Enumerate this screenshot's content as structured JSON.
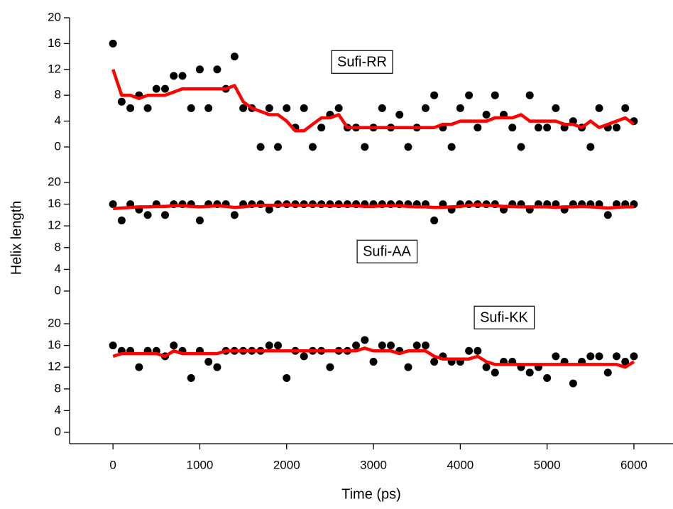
{
  "chart_data": [
    {
      "type": "scatter",
      "annotation": "Sufi-RR",
      "color": "#000000",
      "line_color": "#ff0000",
      "xlim": [
        -500,
        6450
      ],
      "ylim": [
        -2,
        20
      ],
      "yticks": [
        0,
        4,
        8,
        12,
        16,
        20
      ],
      "x": [
        0,
        100,
        200,
        300,
        400,
        500,
        600,
        700,
        800,
        900,
        1000,
        1100,
        1200,
        1300,
        1400,
        1500,
        1600,
        1700,
        1800,
        1900,
        2000,
        2100,
        2200,
        2300,
        2400,
        2500,
        2600,
        2700,
        2800,
        2900,
        3000,
        3100,
        3200,
        3300,
        3400,
        3500,
        3600,
        3700,
        3800,
        3900,
        4000,
        4100,
        4200,
        4300,
        4400,
        4500,
        4600,
        4700,
        4800,
        4900,
        5000,
        5100,
        5200,
        5300,
        5400,
        5500,
        5600,
        5700,
        5800,
        5900,
        6000
      ],
      "values": [
        16,
        7,
        6,
        8,
        6,
        9,
        9,
        11,
        11,
        6,
        12,
        6,
        12,
        9,
        14,
        6,
        6,
        0,
        6,
        0,
        6,
        3,
        6,
        0,
        3,
        5,
        6,
        3,
        3,
        0,
        3,
        6,
        3,
        5,
        0,
        3,
        6,
        8,
        3,
        0,
        6,
        8,
        3,
        5,
        8,
        5,
        3,
        0,
        8,
        3,
        3,
        6,
        3,
        4,
        3,
        0,
        6,
        3,
        3,
        6,
        4
      ],
      "line_values": [
        12,
        8,
        8,
        7.5,
        8,
        8,
        8,
        8.5,
        9,
        9,
        9,
        9,
        9,
        9,
        9.5,
        7,
        6,
        5.5,
        5,
        5,
        4,
        2.5,
        2.5,
        3.5,
        4.5,
        4.5,
        5,
        3,
        3,
        3,
        3,
        3,
        3,
        3,
        3,
        3,
        3,
        3,
        3.5,
        3.5,
        4,
        4,
        4,
        4,
        4.5,
        4.5,
        4.5,
        5,
        4,
        4,
        4,
        4,
        3.5,
        3.5,
        3,
        4,
        3,
        3.5,
        4,
        4.5,
        3.5
      ]
    },
    {
      "type": "scatter",
      "annotation": "Sufi-AA",
      "ylabel": "Helix length",
      "color": "#000000",
      "line_color": "#ff0000",
      "xlim": [
        -500,
        6450
      ],
      "ylim": [
        -2,
        22
      ],
      "yticks": [
        0,
        4,
        8,
        12,
        16,
        20
      ],
      "x": [
        0,
        100,
        200,
        300,
        400,
        500,
        600,
        700,
        800,
        900,
        1000,
        1100,
        1200,
        1300,
        1400,
        1500,
        1600,
        1700,
        1800,
        1900,
        2000,
        2100,
        2200,
        2300,
        2400,
        2500,
        2600,
        2700,
        2800,
        2900,
        3000,
        3100,
        3200,
        3300,
        3400,
        3500,
        3600,
        3700,
        3800,
        3900,
        4000,
        4100,
        4200,
        4300,
        4400,
        4500,
        4600,
        4700,
        4800,
        4900,
        5000,
        5100,
        5200,
        5300,
        5400,
        5500,
        5600,
        5700,
        5800,
        5900,
        6000
      ],
      "values": [
        16,
        13,
        16,
        15,
        14,
        16,
        14,
        16,
        16,
        16,
        13,
        16,
        16,
        16,
        14,
        16,
        16,
        16,
        15,
        16,
        16,
        16,
        16,
        16,
        16,
        16,
        16,
        16,
        16,
        16,
        16,
        16,
        16,
        16,
        16,
        16,
        16,
        13,
        16,
        15,
        16,
        16,
        16,
        16,
        16,
        15,
        16,
        16,
        15,
        16,
        16,
        16,
        15,
        16,
        16,
        16,
        16,
        14,
        16,
        16,
        16
      ],
      "line_values": [
        15.2,
        15.3,
        15.4,
        15.5,
        15.5,
        15.6,
        15.6,
        15.7,
        15.7,
        15.6,
        15.5,
        15.6,
        15.7,
        15.6,
        15.4,
        15.5,
        15.7,
        15.8,
        15.8,
        15.8,
        15.9,
        15.8,
        15.8,
        15.8,
        15.8,
        15.7,
        15.7,
        15.7,
        15.7,
        15.6,
        15.6,
        15.7,
        15.7,
        15.7,
        15.6,
        15.5,
        15.5,
        15.4,
        15.4,
        15.5,
        15.6,
        15.8,
        15.9,
        15.8,
        15.7,
        15.6,
        15.6,
        15.5,
        15.5,
        15.5,
        15.5,
        15.4,
        15.5,
        15.5,
        15.6,
        15.5,
        15.4,
        15.3,
        15.4,
        15.5,
        15.5
      ]
    },
    {
      "type": "scatter",
      "annotation": "Sufi-KK",
      "xlabel": "Time (ps)",
      "color": "#000000",
      "line_color": "#ff0000",
      "xlim": [
        -500,
        6450
      ],
      "ylim": [
        -2,
        22
      ],
      "yticks": [
        0,
        4,
        8,
        12,
        16,
        20
      ],
      "xticks": [
        0,
        1000,
        2000,
        3000,
        4000,
        5000,
        6000
      ],
      "x": [
        0,
        100,
        200,
        300,
        400,
        500,
        600,
        700,
        800,
        900,
        1000,
        1100,
        1200,
        1300,
        1400,
        1500,
        1600,
        1700,
        1800,
        1900,
        2000,
        2100,
        2200,
        2300,
        2400,
        2500,
        2600,
        2700,
        2800,
        2900,
        3000,
        3100,
        3200,
        3300,
        3400,
        3500,
        3600,
        3700,
        3800,
        3900,
        4000,
        4100,
        4200,
        4300,
        4400,
        4500,
        4600,
        4700,
        4800,
        4900,
        5000,
        5100,
        5200,
        5300,
        5400,
        5500,
        5600,
        5700,
        5800,
        5900,
        6000
      ],
      "values": [
        16,
        15,
        15,
        12,
        15,
        15,
        14,
        16,
        15,
        10,
        15,
        13,
        12,
        15,
        15,
        15,
        15,
        15,
        16,
        16,
        10,
        15,
        14,
        15,
        15,
        12,
        15,
        15,
        16,
        17,
        13,
        16,
        16,
        15,
        12,
        16,
        16,
        13,
        14,
        13,
        13,
        15,
        15,
        12,
        11,
        13,
        13,
        12,
        11,
        12,
        10,
        14,
        13,
        9,
        13,
        14,
        14,
        11,
        14,
        13,
        14
      ],
      "line_values": [
        14,
        14.5,
        14.5,
        14.5,
        14.5,
        14.5,
        14,
        15,
        14.5,
        14.5,
        14.5,
        14.5,
        14.5,
        15,
        15,
        15,
        15,
        15,
        15,
        15,
        15,
        15,
        15,
        15,
        15,
        15,
        15,
        15,
        15,
        15.5,
        15,
        15,
        15,
        14.5,
        15,
        15,
        15,
        14,
        13.5,
        13.5,
        13.5,
        13.5,
        14,
        13,
        12.5,
        12.5,
        12.5,
        12.5,
        12.5,
        12.5,
        12.5,
        12.5,
        12.5,
        12.5,
        12.5,
        12.5,
        12.5,
        12.5,
        12.5,
        12,
        13
      ]
    }
  ]
}
